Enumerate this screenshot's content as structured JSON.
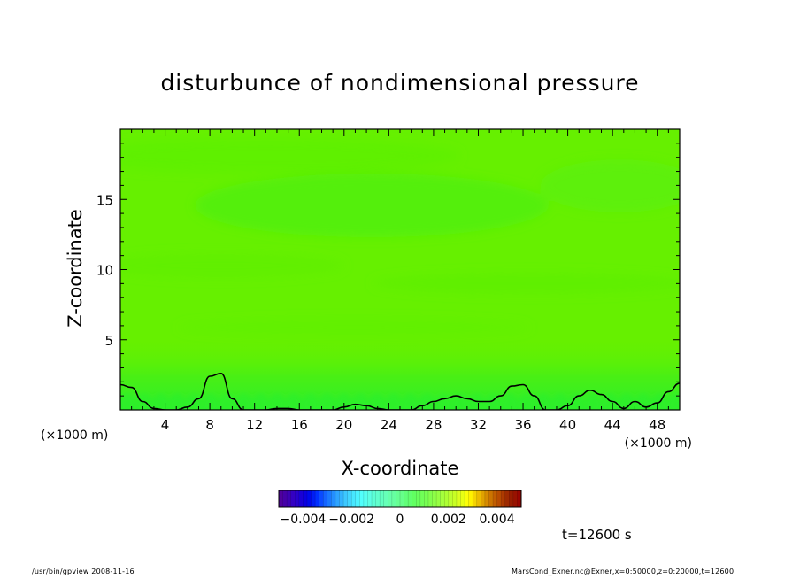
{
  "chart_data": {
    "type": "heatmap",
    "title": "disturbunce of nondimensional pressure",
    "xlabel": "X-coordinate",
    "ylabel": "Z-coordinate",
    "x_unit": "(×1000 m)",
    "y_unit": "(×1000 m)",
    "xlim": [
      0,
      50
    ],
    "ylim": [
      0,
      20
    ],
    "x_ticks": [
      4,
      8,
      12,
      16,
      20,
      24,
      28,
      32,
      36,
      40,
      44,
      48
    ],
    "y_ticks": [
      5,
      10,
      15
    ],
    "color_range": [
      -0.005,
      0.005
    ],
    "colorbar_ticks": [
      {
        "value": -0.004,
        "label": "−0.004"
      },
      {
        "value": -0.002,
        "label": "−0.002"
      },
      {
        "value": 0,
        "label": "0"
      },
      {
        "value": 0.002,
        "label": "0.002"
      },
      {
        "value": 0.004,
        "label": "0.004"
      }
    ],
    "field_description_colors": {
      "background": "#66f000",
      "near_surface": "#2ef02a",
      "upper_band": "#52ef10"
    },
    "zero_contour_height": [
      1.8,
      1.6,
      0.6,
      0.1,
      0.0,
      0.0,
      0.2,
      0.8,
      2.4,
      2.6,
      0.8,
      0.0,
      0.0,
      0.0,
      0.1,
      0.1,
      0.0,
      0.0,
      0.0,
      0.0,
      0.2,
      0.4,
      0.3,
      0.1,
      0.0,
      0.0,
      0.0,
      0.3,
      0.6,
      0.8,
      1.0,
      0.8,
      0.6,
      0.6,
      1.0,
      1.7,
      1.8,
      1.0,
      0.0,
      0.0,
      0.3,
      1.0,
      1.4,
      1.1,
      0.6,
      0.1,
      0.6,
      0.2,
      0.5,
      1.3,
      1.9
    ],
    "zero_contour_x_step": 1
  },
  "time_label": "t=12600 s",
  "footer_left": "/usr/bin/gpview   2008-11-16",
  "footer_right": "MarsCond_Exner.nc@Exner,x=0:50000,z=0:20000,t=12600"
}
